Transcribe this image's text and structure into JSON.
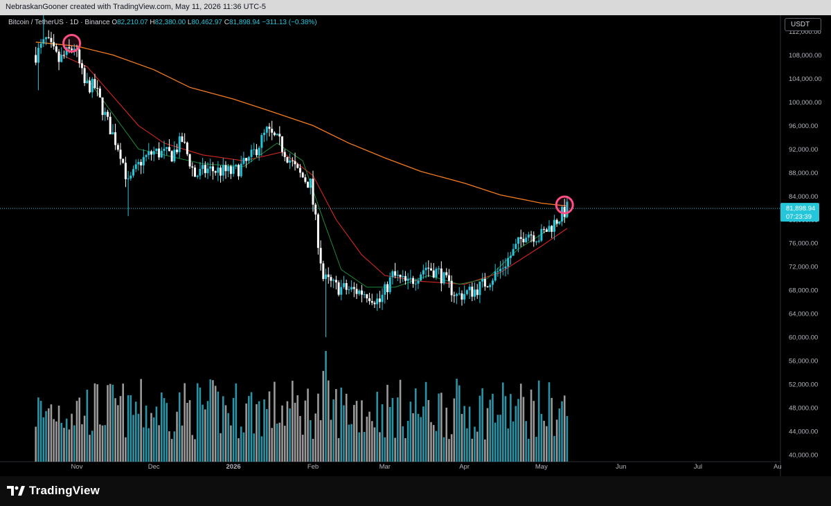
{
  "header": {
    "attribution": "NebraskanGooner created with TradingView.com, May 11, 2026 11:36 UTC-5"
  },
  "legend": {
    "symbol": "Bitcoin / TetherUS · 1D · Binance",
    "open_label": "O",
    "open": "82,210.07",
    "high_label": "H",
    "high": "82,380.00",
    "low_label": "L",
    "low": "80,462.97",
    "close_label": "C",
    "close": "81,898.94",
    "change": "−311.13 (−0.38%)"
  },
  "currency_button": "USDT",
  "price_label": {
    "price": "81,898.94",
    "countdown": "07:23:39"
  },
  "footer": {
    "brand": "TradingView"
  },
  "colors": {
    "up": "#26c6da",
    "down": "#ffffff",
    "vol_up": "#2a93a6",
    "vol_down": "#9a9a9a",
    "ma_long": "#f57c1f",
    "ma_mid": "#d1281f",
    "ma_short": "#1f8a3c",
    "circle": "#ff4f84",
    "accent_label": "#26c6da"
  },
  "chart_data": {
    "type": "candlestick",
    "ylim": [
      40000,
      116000
    ],
    "y_ticks": [
      "112,000.00",
      "108,000.00",
      "104,000.00",
      "100,000.00",
      "96,000.00",
      "92,000.00",
      "88,000.00",
      "84,000.00",
      "80,000.00",
      "76,000.00",
      "72,000.00",
      "68,000.00",
      "64,000.00",
      "60,000.00",
      "56,000.00",
      "52,000.00",
      "48,000.00",
      "44,000.00",
      "40,000.00"
    ],
    "x_ticks": [
      "Nov",
      "Dec",
      "2026",
      "Feb",
      "Mar",
      "Apr",
      "May",
      "Jun",
      "Jul",
      "Au"
    ],
    "current_price": 81898.94,
    "price_path": [
      [
        "2025-10-16",
        108000
      ],
      [
        "2025-10-20",
        110500
      ],
      [
        "2025-10-25",
        107000
      ],
      [
        "2025-10-31",
        109500
      ],
      [
        "2025-11-04",
        103000
      ],
      [
        "2025-11-08",
        102500
      ],
      [
        "2025-11-13",
        96500
      ],
      [
        "2025-11-18",
        91500
      ],
      [
        "2025-11-21",
        86000
      ],
      [
        "2025-11-26",
        90000
      ],
      [
        "2025-12-01",
        91500
      ],
      [
        "2025-12-08",
        91000
      ],
      [
        "2025-12-12",
        93500
      ],
      [
        "2025-12-17",
        87500
      ],
      [
        "2025-12-22",
        88500
      ],
      [
        "2026-01-01",
        88000
      ],
      [
        "2026-01-07",
        90000
      ],
      [
        "2026-01-14",
        95000
      ],
      [
        "2026-01-19",
        93000
      ],
      [
        "2026-01-26",
        88000
      ],
      [
        "2026-01-31",
        86000
      ],
      [
        "2026-02-05",
        70000
      ],
      [
        "2026-02-10",
        68500
      ],
      [
        "2026-02-16",
        68000
      ],
      [
        "2026-02-22",
        67500
      ],
      [
        "2026-02-27",
        66000
      ],
      [
        "2026-03-04",
        70500
      ],
      [
        "2026-03-10",
        69000
      ],
      [
        "2026-03-17",
        72000
      ],
      [
        "2026-03-22",
        71000
      ],
      [
        "2026-03-29",
        67000
      ],
      [
        "2026-04-05",
        68000
      ],
      [
        "2026-04-10",
        69500
      ],
      [
        "2026-04-15",
        71500
      ],
      [
        "2026-04-20",
        74500
      ],
      [
        "2026-04-25",
        78000
      ],
      [
        "2026-04-30",
        77000
      ],
      [
        "2026-05-05",
        79000
      ],
      [
        "2026-05-11",
        81899
      ]
    ],
    "ma_long": [
      [
        "2025-10-16",
        110200
      ],
      [
        "2025-11-01",
        109500
      ],
      [
        "2025-11-15",
        108000
      ],
      [
        "2025-12-01",
        105500
      ],
      [
        "2025-12-15",
        102500
      ],
      [
        "2026-01-01",
        100500
      ],
      [
        "2026-01-15",
        98500
      ],
      [
        "2026-02-01",
        96000
      ],
      [
        "2026-02-15",
        93000
      ],
      [
        "2026-03-01",
        90500
      ],
      [
        "2026-03-15",
        88200
      ],
      [
        "2026-04-01",
        86200
      ],
      [
        "2026-04-15",
        84200
      ],
      [
        "2026-05-01",
        82800
      ],
      [
        "2026-05-11",
        82300
      ]
    ],
    "ma_mid": [
      [
        "2025-10-25",
        108200
      ],
      [
        "2025-11-05",
        106000
      ],
      [
        "2025-11-15",
        101000
      ],
      [
        "2025-11-25",
        96000
      ],
      [
        "2025-12-05",
        93000
      ],
      [
        "2025-12-20",
        91000
      ],
      [
        "2026-01-05",
        90000
      ],
      [
        "2026-01-20",
        91500
      ],
      [
        "2026-02-01",
        87500
      ],
      [
        "2026-02-10",
        80000
      ],
      [
        "2026-02-20",
        74000
      ],
      [
        "2026-03-01",
        70500
      ],
      [
        "2026-03-15",
        69500
      ],
      [
        "2026-04-01",
        69000
      ],
      [
        "2026-04-15",
        71000
      ],
      [
        "2026-05-01",
        75500
      ],
      [
        "2026-05-11",
        78500
      ]
    ],
    "ma_short": [
      [
        "2025-11-05",
        104000
      ],
      [
        "2025-11-15",
        98000
      ],
      [
        "2025-11-25",
        92000
      ],
      [
        "2025-12-05",
        91000
      ],
      [
        "2025-12-20",
        89500
      ],
      [
        "2026-01-05",
        89000
      ],
      [
        "2026-01-18",
        93000
      ],
      [
        "2026-01-28",
        90000
      ],
      [
        "2026-02-05",
        80000
      ],
      [
        "2026-02-12",
        71500
      ],
      [
        "2026-02-22",
        68500
      ],
      [
        "2026-03-05",
        68500
      ],
      [
        "2026-03-18",
        70500
      ],
      [
        "2026-03-30",
        69000
      ],
      [
        "2026-04-10",
        70000
      ],
      [
        "2026-04-22",
        75000
      ],
      [
        "2026-05-01",
        77500
      ],
      [
        "2026-05-11",
        80500
      ]
    ],
    "highlight_circles": [
      [
        "2025-10-30",
        110000
      ],
      [
        "2026-05-10",
        82500
      ]
    ]
  }
}
